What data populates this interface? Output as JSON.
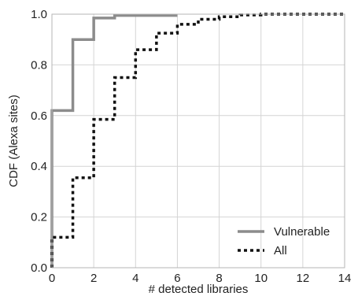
{
  "chart_data": {
    "type": "line",
    "title": "",
    "xlabel": "# detected libraries",
    "ylabel": "CDF (Alexa sites)",
    "xlim": [
      0,
      14
    ],
    "ylim": [
      0,
      1.0
    ],
    "x_ticks": [
      "0",
      "2",
      "4",
      "6",
      "8",
      "10",
      "12",
      "14"
    ],
    "y_ticks": [
      "0.0",
      "0.2",
      "0.4",
      "0.6",
      "0.8",
      "1.0"
    ],
    "grid": true,
    "legend_position": "bottom-right",
    "step": true,
    "series": [
      {
        "name": "Vulnerable",
        "style": "solid",
        "color": "#8c8c8c",
        "points": [
          [
            0,
            0.0
          ],
          [
            0,
            0.62
          ],
          [
            1,
            0.62
          ],
          [
            1,
            0.9
          ],
          [
            2,
            0.9
          ],
          [
            2,
            0.985
          ],
          [
            3,
            0.985
          ],
          [
            3,
            0.995
          ],
          [
            6,
            0.995
          ]
        ]
      },
      {
        "name": "All",
        "style": "dotted",
        "color": "#111111",
        "points": [
          [
            0,
            0.0
          ],
          [
            0,
            0.12
          ],
          [
            1,
            0.12
          ],
          [
            1,
            0.355
          ],
          [
            2,
            0.355
          ],
          [
            2,
            0.585
          ],
          [
            3,
            0.585
          ],
          [
            3,
            0.75
          ],
          [
            4,
            0.75
          ],
          [
            4,
            0.86
          ],
          [
            5,
            0.86
          ],
          [
            5,
            0.925
          ],
          [
            6,
            0.925
          ],
          [
            6,
            0.96
          ],
          [
            7,
            0.96
          ],
          [
            7,
            0.98
          ],
          [
            8,
            0.98
          ],
          [
            8,
            0.99
          ],
          [
            9,
            0.99
          ],
          [
            9,
            0.997
          ],
          [
            10,
            0.997
          ],
          [
            10,
            1.0
          ],
          [
            14,
            1.0
          ]
        ]
      }
    ]
  }
}
